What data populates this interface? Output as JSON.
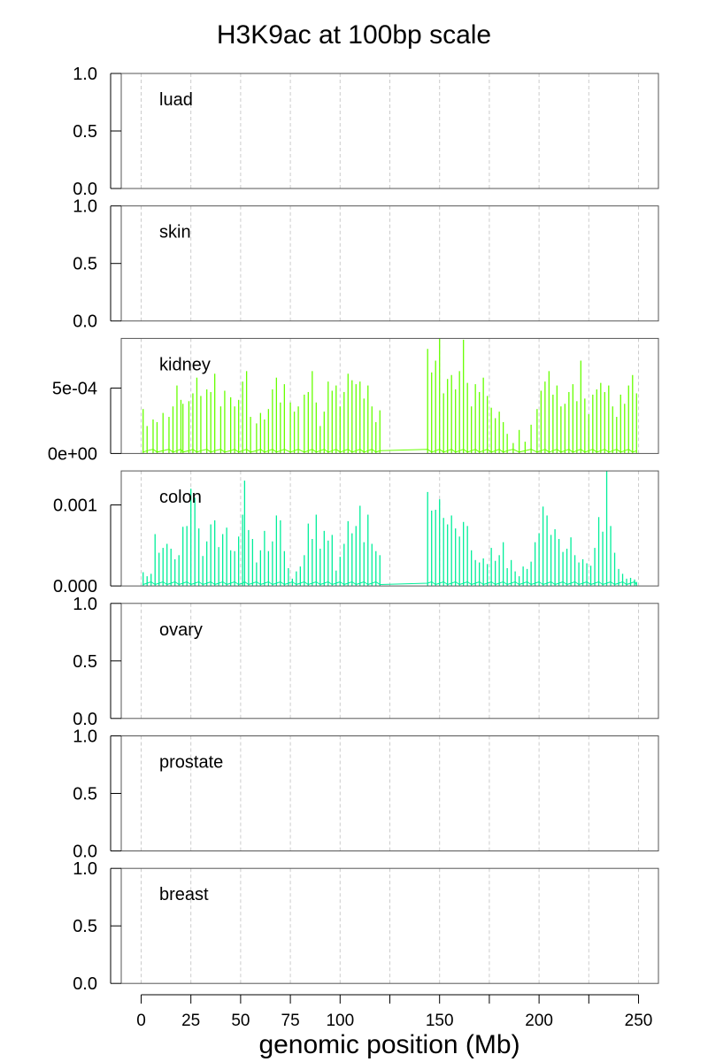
{
  "chart_data": {
    "type": "area",
    "title": "H3K9ac at 100bp scale",
    "xlabel": "genomic position (Mb)",
    "xlim": [
      -10,
      260
    ],
    "x_ticks": [
      0,
      25,
      50,
      75,
      100,
      125,
      150,
      175,
      200,
      225,
      250
    ],
    "x_tick_labels": [
      "0",
      "25",
      "50",
      "75",
      "100",
      "",
      "150",
      "",
      "200",
      "",
      "250"
    ],
    "grid": "vertical dashed",
    "panels": [
      {
        "label": "luad",
        "ylim": [
          0,
          1
        ],
        "yticks": [
          0.0,
          0.5,
          1.0
        ],
        "ytick_labels": [
          "0.0",
          "0.5",
          "1.0"
        ],
        "color": "#000000",
        "peaks": []
      },
      {
        "label": "skin",
        "ylim": [
          0,
          1
        ],
        "yticks": [
          0.0,
          0.5,
          1.0
        ],
        "ytick_labels": [
          "0.0",
          "0.5",
          "1.0"
        ],
        "color": "#000000",
        "peaks": []
      },
      {
        "label": "kidney",
        "ylim": [
          0,
          0.00088
        ],
        "yticks": [
          0,
          0.0005
        ],
        "ytick_labels": [
          "0e+00",
          "5e-04"
        ],
        "color": "#66ff00",
        "peaks": [
          [
            1,
            0.00034
          ],
          [
            3,
            0.00021
          ],
          [
            6,
            0.00026
          ],
          [
            8,
            0.00024
          ],
          [
            11,
            0.00031
          ],
          [
            14,
            0.00028
          ],
          [
            16,
            0.00036
          ],
          [
            18,
            0.00052
          ],
          [
            20,
            0.00041
          ],
          [
            21,
            0.00038
          ],
          [
            24,
            0.0004
          ],
          [
            26,
            0.00046
          ],
          [
            28,
            0.00058
          ],
          [
            30,
            0.00044
          ],
          [
            33,
            0.00049
          ],
          [
            35,
            0.00047
          ],
          [
            37,
            0.00061
          ],
          [
            40,
            0.00036
          ],
          [
            42,
            0.00048
          ],
          [
            45,
            0.00043
          ],
          [
            47,
            0.00036
          ],
          [
            49,
            0.00041
          ],
          [
            51,
            0.00055
          ],
          [
            53,
            0.00063
          ],
          [
            55,
            0.00028
          ],
          [
            58,
            0.00023
          ],
          [
            60,
            0.00031
          ],
          [
            62,
            0.00026
          ],
          [
            64,
            0.00034
          ],
          [
            66,
            0.00049
          ],
          [
            68,
            0.00058
          ],
          [
            70,
            0.00039
          ],
          [
            72,
            0.00053
          ],
          [
            75,
            0.00039
          ],
          [
            77,
            0.00032
          ],
          [
            79,
            0.00036
          ],
          [
            82,
            0.00045
          ],
          [
            84,
            0.00047
          ],
          [
            86,
            0.00063
          ],
          [
            88,
            0.00039
          ],
          [
            90,
            0.00021
          ],
          [
            92,
            0.00032
          ],
          [
            94,
            0.00055
          ],
          [
            96,
            0.00048
          ],
          [
            98,
            0.00052
          ],
          [
            100,
            0.00036
          ],
          [
            102,
            0.00047
          ],
          [
            104,
            0.00061
          ],
          [
            106,
            0.00056
          ],
          [
            108,
            0.00053
          ],
          [
            110,
            0.00055
          ],
          [
            112,
            0.00042
          ],
          [
            114,
            0.00052
          ],
          [
            116,
            0.00036
          ],
          [
            118,
            0.00024
          ],
          [
            120,
            0.00033
          ],
          [
            144,
            0.0008
          ],
          [
            146,
            0.00062
          ],
          [
            148,
            0.00071
          ],
          [
            150,
            0.00088
          ],
          [
            152,
            0.00046
          ],
          [
            154,
            0.00057
          ],
          [
            156,
            0.0006
          ],
          [
            158,
            0.00049
          ],
          [
            160,
            0.00063
          ],
          [
            162,
            0.00087
          ],
          [
            164,
            0.00054
          ],
          [
            166,
            0.00036
          ],
          [
            168,
            0.00053
          ],
          [
            170,
            0.00047
          ],
          [
            172,
            0.00058
          ],
          [
            174,
            0.00044
          ],
          [
            176,
            0.00035
          ],
          [
            178,
            0.00027
          ],
          [
            180,
            0.00032
          ],
          [
            182,
            0.00024
          ],
          [
            184,
            0.00015
          ],
          [
            187,
            8e-05
          ],
          [
            190,
            0.00018
          ],
          [
            193,
            9e-05
          ],
          [
            196,
            0.00022
          ],
          [
            199,
            0.00034
          ],
          [
            201,
            0.00048
          ],
          [
            203,
            0.00055
          ],
          [
            205,
            0.00063
          ],
          [
            207,
            0.00045
          ],
          [
            209,
            0.00052
          ],
          [
            211,
            0.00036
          ],
          [
            213,
            0.00038
          ],
          [
            215,
            0.00047
          ],
          [
            217,
            0.00053
          ],
          [
            219,
            0.0004
          ],
          [
            221,
            0.00071
          ],
          [
            223,
            0.00042
          ],
          [
            225,
            0.0003
          ],
          [
            227,
            0.00045
          ],
          [
            229,
            0.00049
          ],
          [
            231,
            0.00054
          ],
          [
            233,
            0.00047
          ],
          [
            235,
            0.00052
          ],
          [
            237,
            0.00036
          ],
          [
            239,
            0.00028
          ],
          [
            241,
            0.00045
          ],
          [
            243,
            0.00038
          ],
          [
            245,
            0.00052
          ],
          [
            247,
            0.0006
          ],
          [
            249,
            0.00046
          ]
        ]
      },
      {
        "label": "colon",
        "ylim": [
          0,
          0.00142
        ],
        "yticks": [
          0,
          0.001
        ],
        "ytick_labels": [
          "0.000",
          "0.001"
        ],
        "color": "#00ee99",
        "peaks": [
          [
            1,
            0.00017
          ],
          [
            3,
            0.00012
          ],
          [
            5,
            0.00015
          ],
          [
            7,
            0.00064
          ],
          [
            9,
            0.00041
          ],
          [
            11,
            0.00047
          ],
          [
            13,
            0.00052
          ],
          [
            15,
            0.00046
          ],
          [
            17,
            0.00033
          ],
          [
            19,
            0.00038
          ],
          [
            21,
            0.00073
          ],
          [
            23,
            0.00074
          ],
          [
            25,
            0.0012
          ],
          [
            27,
            0.00109
          ],
          [
            29,
            0.00071
          ],
          [
            31,
            0.00037
          ],
          [
            33,
            0.00055
          ],
          [
            35,
            0.00076
          ],
          [
            37,
            0.00081
          ],
          [
            39,
            0.00048
          ],
          [
            41,
            0.00064
          ],
          [
            43,
            0.00072
          ],
          [
            45,
            0.00044
          ],
          [
            47,
            0.00043
          ],
          [
            49,
            0.00061
          ],
          [
            51,
            0.00088
          ],
          [
            52,
            0.0013
          ],
          [
            54,
            0.00069
          ],
          [
            56,
            0.00058
          ],
          [
            58,
            0.00029
          ],
          [
            60,
            0.00044
          ],
          [
            62,
            0.00068
          ],
          [
            64,
            0.00043
          ],
          [
            66,
            0.00055
          ],
          [
            68,
            0.00087
          ],
          [
            70,
            0.00081
          ],
          [
            72,
            0.00043
          ],
          [
            74,
            0.00022
          ],
          [
            76,
            9e-05
          ],
          [
            78,
            0.00018
          ],
          [
            80,
            0.00024
          ],
          [
            82,
            0.00038
          ],
          [
            84,
            0.00077
          ],
          [
            86,
            0.00058
          ],
          [
            88,
            0.00088
          ],
          [
            90,
            0.00046
          ],
          [
            92,
            0.00068
          ],
          [
            94,
            0.00056
          ],
          [
            96,
            0.00063
          ],
          [
            98,
            0.00019
          ],
          [
            100,
            0.00036
          ],
          [
            102,
            0.00052
          ],
          [
            104,
            0.0008
          ],
          [
            106,
            0.00065
          ],
          [
            108,
            0.00074
          ],
          [
            110,
            0.00099
          ],
          [
            112,
            0.00054
          ],
          [
            114,
            0.00088
          ],
          [
            116,
            0.00052
          ],
          [
            118,
            0.00043
          ],
          [
            120,
            0.00038
          ],
          [
            144,
            0.00116
          ],
          [
            146,
            0.00093
          ],
          [
            148,
            0.00094
          ],
          [
            150,
            0.00107
          ],
          [
            152,
            0.00084
          ],
          [
            154,
            0.00076
          ],
          [
            156,
            0.00087
          ],
          [
            158,
            0.00071
          ],
          [
            160,
            0.00061
          ],
          [
            162,
            0.00079
          ],
          [
            164,
            0.00074
          ],
          [
            166,
            0.00044
          ],
          [
            168,
            0.00032
          ],
          [
            170,
            0.00029
          ],
          [
            172,
            0.00034
          ],
          [
            174,
            0.00027
          ],
          [
            176,
            0.00047
          ],
          [
            178,
            0.00031
          ],
          [
            180,
            0.00038
          ],
          [
            182,
            0.00054
          ],
          [
            184,
            0.00022
          ],
          [
            186,
            0.00032
          ],
          [
            188,
            0.00018
          ],
          [
            190,
            0.00012
          ],
          [
            192,
            0.00024
          ],
          [
            194,
            0.00021
          ],
          [
            196,
            0.0003
          ],
          [
            198,
            0.00054
          ],
          [
            200,
            0.00065
          ],
          [
            202,
            0.00098
          ],
          [
            204,
            0.00087
          ],
          [
            206,
            0.00063
          ],
          [
            208,
            0.0007
          ],
          [
            210,
            0.00058
          ],
          [
            212,
            0.00042
          ],
          [
            214,
            0.00046
          ],
          [
            216,
            0.0006
          ],
          [
            218,
            0.00038
          ],
          [
            220,
            0.00029
          ],
          [
            222,
            0.00033
          ],
          [
            224,
            0.00028
          ],
          [
            226,
            0.00025
          ],
          [
            228,
            0.00047
          ],
          [
            230,
            0.00085
          ],
          [
            232,
            0.00067
          ],
          [
            234,
            0.00142
          ],
          [
            236,
            0.00074
          ],
          [
            238,
            0.00041
          ],
          [
            240,
            0.00021
          ],
          [
            242,
            0.00015
          ],
          [
            244,
            9e-05
          ],
          [
            246,
            0.0001
          ],
          [
            248,
            8e-05
          ],
          [
            249,
            5e-05
          ]
        ]
      },
      {
        "label": "ovary",
        "ylim": [
          0,
          1
        ],
        "yticks": [
          0.0,
          0.5,
          1.0
        ],
        "ytick_labels": [
          "0.0",
          "0.5",
          "1.0"
        ],
        "color": "#000000",
        "peaks": []
      },
      {
        "label": "prostate",
        "ylim": [
          0,
          1
        ],
        "yticks": [
          0.0,
          0.5,
          1.0
        ],
        "ytick_labels": [
          "0.0",
          "0.5",
          "1.0"
        ],
        "color": "#000000",
        "peaks": []
      },
      {
        "label": "breast",
        "ylim": [
          0,
          1
        ],
        "yticks": [
          0.0,
          0.5,
          1.0
        ],
        "ytick_labels": [
          "0.0",
          "0.5",
          "1.0"
        ],
        "color": "#000000",
        "peaks": []
      }
    ]
  }
}
